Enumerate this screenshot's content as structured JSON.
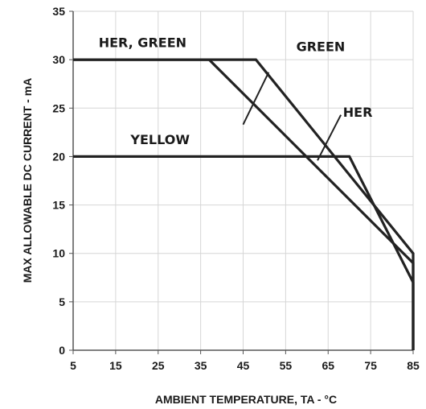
{
  "chart_data": {
    "type": "line",
    "xlabel": "AMBIENT TEMPERATURE, TA - °C",
    "ylabel": "MAX ALLOWABLE DC CURRENT - mA",
    "xlim": [
      5,
      85
    ],
    "ylim": [
      0,
      35
    ],
    "xticks": [
      5,
      15,
      25,
      35,
      45,
      55,
      65,
      75,
      85
    ],
    "yticks": [
      0,
      5,
      10,
      15,
      20,
      25,
      30,
      35
    ],
    "grid": true,
    "series": [
      {
        "name": "HER",
        "x": [
          5,
          48,
          85,
          85
        ],
        "y": [
          30,
          30,
          10,
          0
        ]
      },
      {
        "name": "GREEN",
        "x": [
          5,
          37,
          85,
          85
        ],
        "y": [
          30,
          30,
          9,
          0
        ]
      },
      {
        "name": "YELLOW",
        "x": [
          5,
          70,
          85,
          85
        ],
        "y": [
          20,
          20,
          7,
          0
        ]
      }
    ],
    "annotations": [
      {
        "text": "HER, GREEN",
        "x": 11,
        "y": 31.3
      },
      {
        "text": "GREEN",
        "x": 57.5,
        "y": 30.9
      },
      {
        "text": "HER",
        "x": 68.5,
        "y": 24.1
      },
      {
        "text": "YELLOW",
        "x": 18.5,
        "y": 21.3
      }
    ],
    "pointers": [
      {
        "from": [
          51,
          28.7
        ],
        "to": [
          45,
          23.3
        ]
      },
      {
        "from": [
          68,
          24.3
        ],
        "to": [
          62.5,
          19.6
        ]
      }
    ],
    "colors": {
      "line": "#222222",
      "grid": "#d6d6d6",
      "axis": "#555555"
    }
  }
}
